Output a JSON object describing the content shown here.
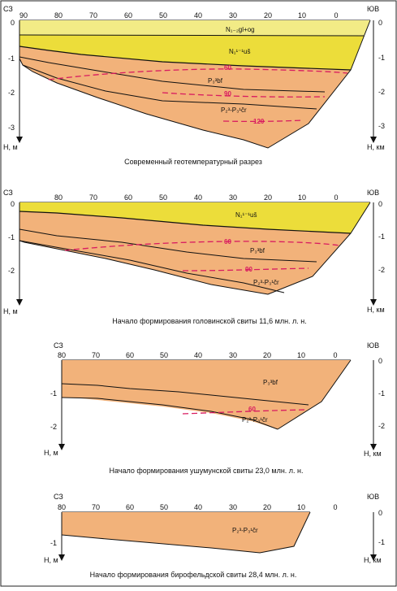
{
  "colors": {
    "border": "#222222",
    "layer_light_yellow": "#f2eb86",
    "layer_yellow": "#ecdd3a",
    "layer_orange": "#f2b27a",
    "isotherm": "#d81b60",
    "axis": "#111111"
  },
  "panels": [
    {
      "id": "modern",
      "corner_left": "СЗ",
      "corner_right": "ЮВ",
      "x_ticks": [
        "90",
        "80",
        "70",
        "60",
        "50",
        "40",
        "30",
        "20",
        "10",
        "0"
      ],
      "left_depth_ticks": [
        "0",
        "-1",
        "-2",
        "-3"
      ],
      "right_depth_ticks": [
        "0",
        "-1",
        "-2",
        "-3"
      ],
      "left_axis_label": "Н, м",
      "right_axis_label": "Н, км",
      "layer_labels": [
        "N₁₋₂gl+og",
        "N₁¹⁻¹uš",
        "P₃³bf",
        "P₂³-P₃¹čr"
      ],
      "isotherm_labels": [
        "60",
        "90",
        "120"
      ],
      "caption": "Современный геотемпературный разрез"
    },
    {
      "id": "golovin",
      "corner_left": "СЗ",
      "corner_right": "ЮВ",
      "x_ticks": [
        "80",
        "70",
        "60",
        "50",
        "40",
        "30",
        "20",
        "10",
        "0"
      ],
      "left_depth_ticks": [
        "0",
        "-1",
        "-2"
      ],
      "right_depth_ticks": [
        "0",
        "-1",
        "-2"
      ],
      "left_axis_label": "Н, м",
      "right_axis_label": "Н, км",
      "layer_labels": [
        "N₁¹⁻¹uš",
        "P₃³bf",
        "P₂³-P₃¹čr"
      ],
      "isotherm_labels": [
        "60",
        "90"
      ],
      "caption": "Начало формирования головинской свиты 11,6 млн. л. н."
    },
    {
      "id": "ushumun",
      "corner_left": "СЗ",
      "corner_right": "ЮВ",
      "x_ticks": [
        "80",
        "70",
        "60",
        "50",
        "40",
        "30",
        "20",
        "10",
        "0"
      ],
      "left_depth_ticks": [
        "-1",
        "-2"
      ],
      "right_depth_ticks": [
        "0",
        "-1",
        "-2"
      ],
      "left_axis_label": "Н, м",
      "right_axis_label": "Н, км",
      "layer_labels": [
        "P₃³bf",
        "P₂³-P₃¹čr"
      ],
      "isotherm_labels": [
        "60"
      ],
      "caption": "Начало формирования ушумунской свиты 23,0 млн. л. н."
    },
    {
      "id": "birofeld",
      "corner_left": "СЗ",
      "corner_right": "ЮВ",
      "x_ticks": [
        "80",
        "70",
        "60",
        "50",
        "40",
        "30",
        "20",
        "10",
        "0"
      ],
      "left_depth_ticks": [
        "-1"
      ],
      "right_depth_ticks": [
        "0",
        "-1"
      ],
      "left_axis_label": "Н, м",
      "right_axis_label": "Н, км",
      "layer_labels": [
        "P₂³-P₃¹čr"
      ],
      "isotherm_labels": [],
      "caption": "Начало формирования бирофельдской свиты 28,4 млн. л. н."
    }
  ]
}
